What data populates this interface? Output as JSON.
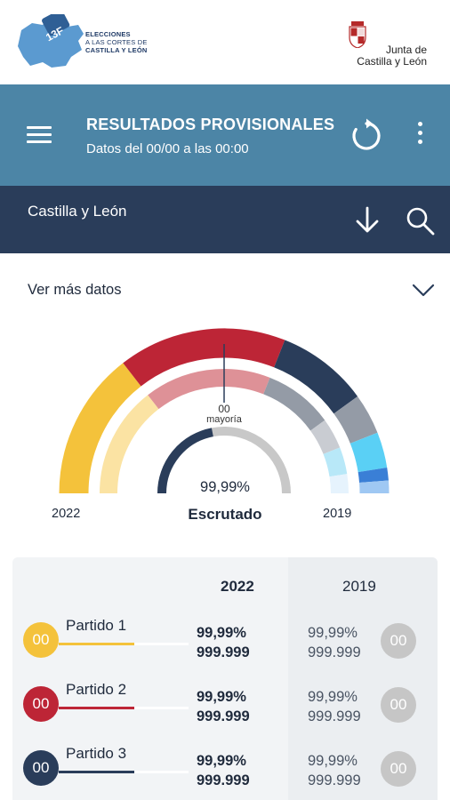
{
  "header": {
    "logo_badge": "13F",
    "logo_line1": "ELECCIONES",
    "logo_line2": "A LAS CORTES DE",
    "logo_line3": "CASTILLA Y LEÓN",
    "junta_line1": "Junta de",
    "junta_line2": "Castilla y León"
  },
  "appbar": {
    "title": "RESULTADOS PROVISIONALES",
    "subtitle": "Datos del 00/00 a las 00:00",
    "icons": [
      "menu-icon",
      "refresh-icon",
      "more-vert-icon"
    ]
  },
  "region": {
    "name": "Castilla y León",
    "icons": [
      "arrow-down-icon",
      "search-icon"
    ]
  },
  "more_data": {
    "label": "Ver más datos",
    "icon": "chevron-down-icon"
  },
  "chart": {
    "majority_value": "00",
    "majority_label": "mayoría",
    "scrutiny_pct": "99,99%",
    "scrutiny_pct_value": 99.99,
    "scrutiny_label": "Escrutado",
    "year_current": "2022",
    "year_previous": "2019"
  },
  "chart_data": {
    "type": "donut-semicircle",
    "outer_ring_2022": [
      {
        "color": "#f4c23b",
        "share": 0.29
      },
      {
        "color": "#bd2536",
        "share": 0.33
      },
      {
        "color": "#2a3d5a",
        "share": 0.18
      },
      {
        "color": "#949ba6",
        "share": 0.08
      },
      {
        "color": "#5ad0f5",
        "share": 0.07
      },
      {
        "color": "#3a7fd6",
        "share": 0.025
      },
      {
        "color": "#9fc8f3",
        "share": 0.025
      }
    ],
    "inner_ring_2019": [
      {
        "color": "#fbe3a3",
        "share": 0.29
      },
      {
        "color": "#de9197",
        "share": 0.33
      },
      {
        "color": "#949ba6",
        "share": 0.18
      },
      {
        "color": "#c9ccd2",
        "share": 0.08
      },
      {
        "color": "#b8e8f8",
        "share": 0.07
      },
      {
        "color": "#e6f3fd",
        "share": 0.05
      }
    ],
    "scrutiny_gauge": {
      "value": 99.99,
      "max": 100,
      "fill_color": "#2a3d5a",
      "track_color": "#c8c8c8"
    }
  },
  "table": {
    "header_2022": "2022",
    "header_2019": "2019",
    "rows": [
      {
        "name": "Partido 1",
        "seats": "00",
        "color": "#f4c23b",
        "bar_share": 0.58,
        "pct_2022": "99,99%",
        "votes_2022": "999.999",
        "pct_2019": "99,99%",
        "votes_2019": "999.999",
        "seats_2019": "00"
      },
      {
        "name": "Partido 2",
        "seats": "00",
        "color": "#bd2536",
        "bar_share": 0.58,
        "pct_2022": "99,99%",
        "votes_2022": "999.999",
        "pct_2019": "99,99%",
        "votes_2019": "999.999",
        "seats_2019": "00"
      },
      {
        "name": "Partido 3",
        "seats": "00",
        "color": "#2a3d5a",
        "bar_share": 0.58,
        "pct_2022": "99,99%",
        "votes_2022": "999.999",
        "pct_2019": "99,99%",
        "votes_2019": "999.999",
        "seats_2019": "00"
      }
    ]
  }
}
